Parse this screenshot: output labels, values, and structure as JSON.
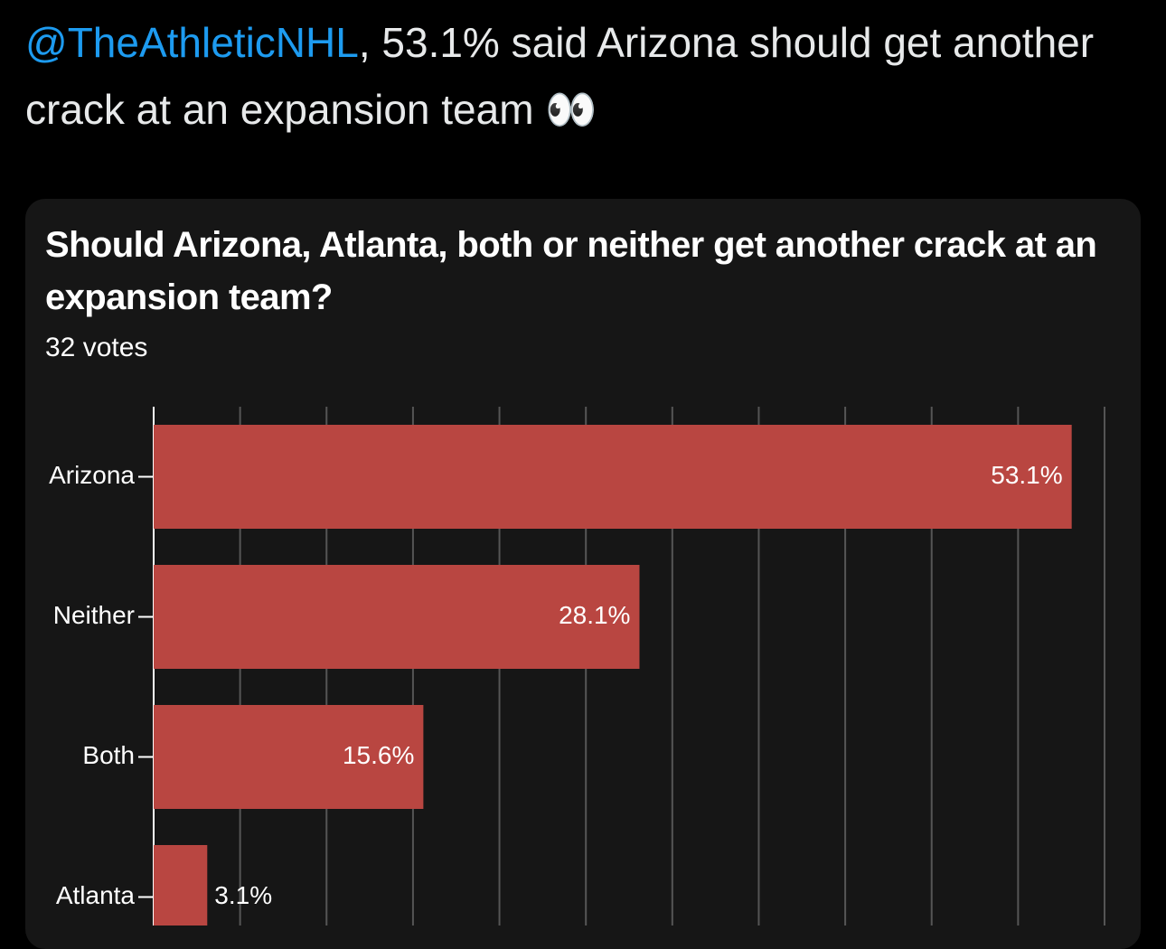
{
  "tweet": {
    "mention": "@TheAthleticNHL",
    "text": ", 53.1% said Arizona should get another crack at an expansion team 👀"
  },
  "chart_data": {
    "type": "bar",
    "orientation": "horizontal",
    "title": "Should Arizona, Atlanta, both or neither get another crack at an expansion team?",
    "subtitle": "32 votes",
    "categories": [
      "Arizona",
      "Neither",
      "Both",
      "Atlanta"
    ],
    "values": [
      53.1,
      28.1,
      15.6,
      3.1
    ],
    "value_labels": [
      "53.1%",
      "28.1%",
      "15.6%",
      "3.1%"
    ],
    "color": "#b94641",
    "xlim": [
      0,
      55
    ],
    "xticks": [
      0,
      5,
      10,
      15,
      20,
      25,
      30,
      35,
      40,
      45,
      50,
      55
    ],
    "grid": true
  }
}
